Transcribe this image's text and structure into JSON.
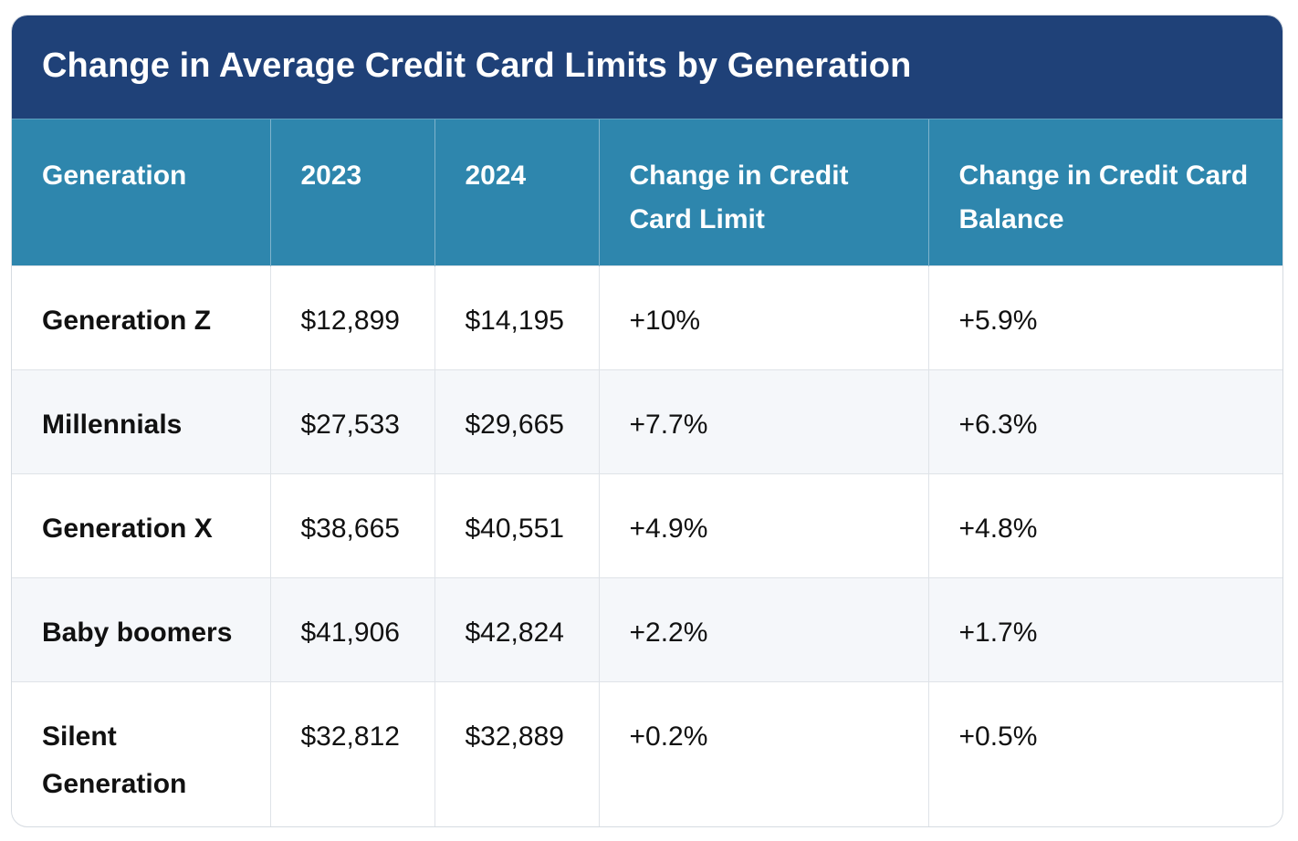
{
  "table": {
    "title": "Change in Average Credit Card Limits by Generation",
    "headers": [
      "Generation",
      "2023",
      "2024",
      "Change in Credit Card Limit",
      "Change in Credit Card Balance"
    ],
    "rows": [
      [
        "Generation Z",
        "$12,899",
        "$14,195",
        "+10%",
        "+5.9%"
      ],
      [
        "Millennials",
        "$27,533",
        "$29,665",
        "+7.7%",
        "+6.3%"
      ],
      [
        "Generation X",
        "$38,665",
        "$40,551",
        "+4.9%",
        "+4.8%"
      ],
      [
        "Baby boomers",
        "$41,906",
        "$42,824",
        "+2.2%",
        "+1.7%"
      ],
      [
        "Silent Generation",
        "$32,812",
        "$32,889",
        "+0.2%",
        "+0.5%"
      ]
    ],
    "colors": {
      "title_background": "#1f4178",
      "header_background": "#2e86ad",
      "stripe_background": "#f5f7fa"
    }
  }
}
